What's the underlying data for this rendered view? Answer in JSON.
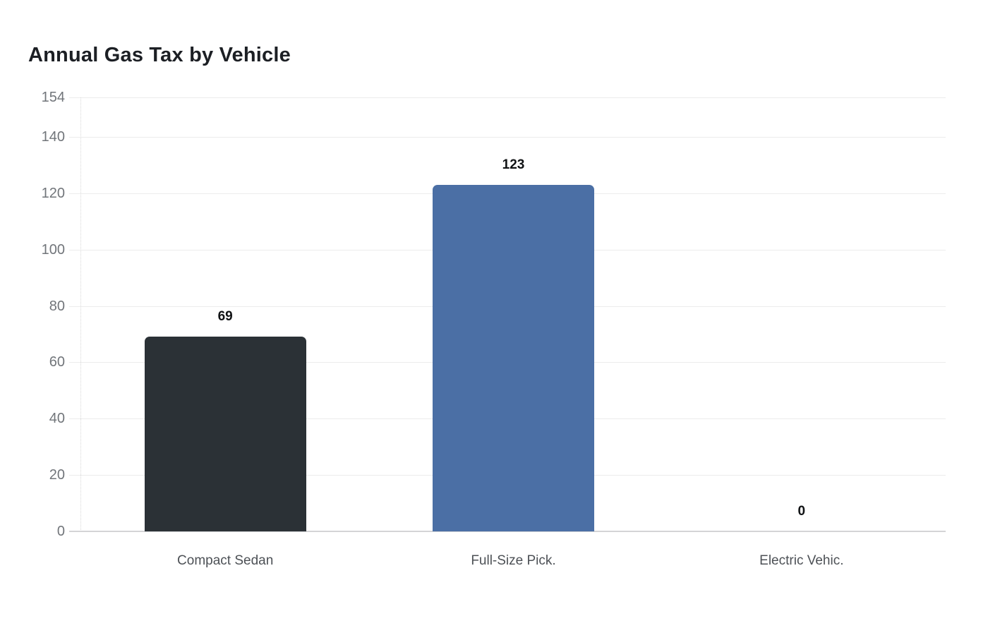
{
  "chart_data": {
    "type": "bar",
    "title": "Annual Gas Tax by Vehicle",
    "categories": [
      "Compact Sedan",
      "Full-Size Pick.",
      "Electric Vehic."
    ],
    "values": [
      69,
      123,
      0
    ],
    "value_labels": [
      "69",
      "123",
      "0"
    ],
    "bar_colors": [
      "#2b3136",
      "#4b6fa5",
      null
    ],
    "y_ticks": [
      154,
      140,
      120,
      100,
      80,
      60,
      40,
      20,
      0
    ],
    "ylim": [
      0,
      154
    ],
    "xlabel": "",
    "ylabel": "",
    "grid": true,
    "legend": "none",
    "colors": {
      "title": "#1c1f24",
      "y_tick_label": "#71757a",
      "x_tick_label": "#4d5156",
      "value_label": "#101214",
      "gridline": "#ececec",
      "baseline": "#d4d4d6",
      "axis_dotted": "#d8d8d8",
      "background": "#ffffff"
    }
  }
}
